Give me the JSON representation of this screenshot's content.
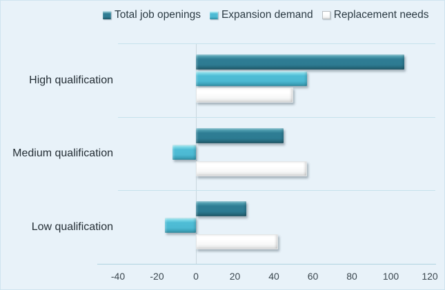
{
  "chart_data": {
    "type": "bar",
    "orientation": "horizontal",
    "title": "",
    "categories": [
      "High qualification",
      "Medium qualification",
      "Low qualification"
    ],
    "series": [
      {
        "name": "Total job openings",
        "color": "#2E7D94",
        "values": [
          107,
          45,
          26
        ]
      },
      {
        "name": "Expansion demand",
        "color": "#4FBDD6",
        "values": [
          57,
          -12,
          -16
        ]
      },
      {
        "name": "Replacement needs",
        "color": "#FFFFFF",
        "values": [
          50,
          57,
          42
        ]
      }
    ],
    "x_axis": {
      "min": -40,
      "max": 120,
      "tick_step": 20,
      "tick_values": [
        -40,
        -20,
        0,
        20,
        40,
        60,
        80,
        100,
        120
      ],
      "tick_labels": [
        "-40",
        "-20",
        "0",
        "20",
        "40",
        "60",
        "80",
        "100",
        "120"
      ]
    },
    "ylabel": "",
    "xlabel": "",
    "legend_position": "top",
    "gridlines": "horizontal category separators",
    "background_color": "#E8F2F9"
  }
}
